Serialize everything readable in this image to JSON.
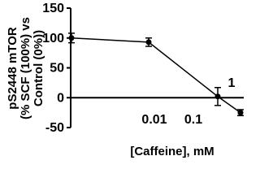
{
  "chart_data": {
    "type": "line",
    "y_label_lines": [
      "pS2448 mTOR",
      "(% SCF (100%) vs",
      "Control (0%))"
    ],
    "x_label": "[Caffeine], mM",
    "categories": [
      null,
      "0.01",
      "0.1",
      "1"
    ],
    "values": [
      100,
      93,
      2,
      -25
    ],
    "errors": [
      8,
      7,
      15,
      5
    ],
    "color": "#000000",
    "ylim": [
      -50,
      150
    ],
    "yticks": [
      -50,
      0,
      50,
      100,
      150
    ]
  }
}
